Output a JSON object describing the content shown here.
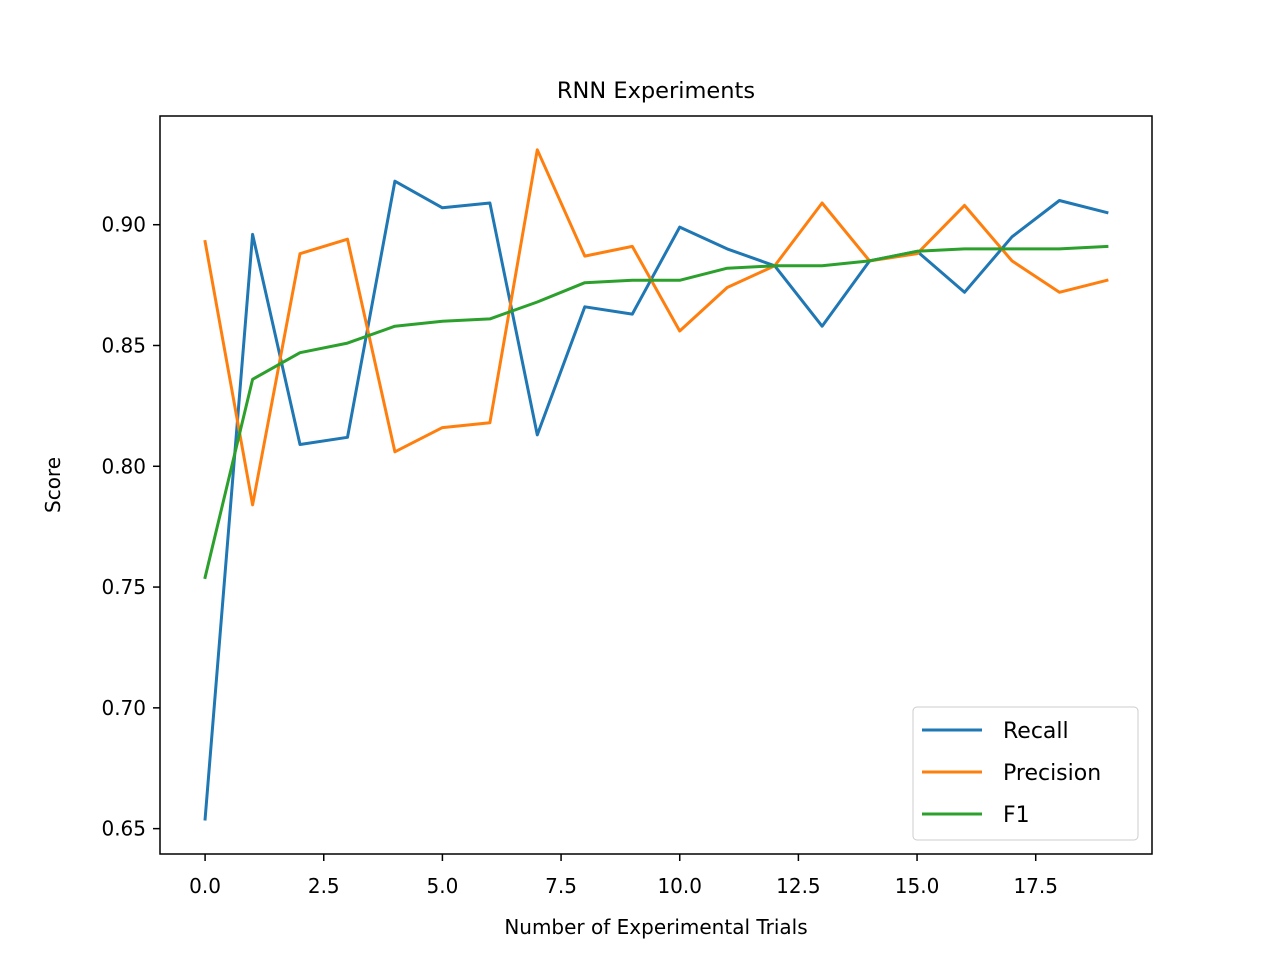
{
  "chart_data": {
    "type": "line",
    "title": "RNN Experiments",
    "xlabel": "Number of Experimental Trials",
    "ylabel": "Score",
    "xlim": [
      -0.95,
      19.95
    ],
    "ylim": [
      0.6395,
      0.945
    ],
    "xticks": [
      0,
      2.5,
      5,
      7.5,
      10,
      12.5,
      15,
      17.5
    ],
    "xtick_labels": [
      "0.0",
      "2.5",
      "5.0",
      "7.5",
      "10.0",
      "12.5",
      "15.0",
      "17.5"
    ],
    "yticks": [
      0.65,
      0.7,
      0.75,
      0.8,
      0.85,
      0.9
    ],
    "ytick_labels": [
      "0.65",
      "0.70",
      "0.75",
      "0.80",
      "0.85",
      "0.90"
    ],
    "grid": false,
    "legend_position": "lower-right",
    "x": [
      0,
      1,
      2,
      3,
      4,
      5,
      6,
      7,
      8,
      9,
      10,
      11,
      12,
      13,
      14,
      15,
      16,
      17,
      18,
      19
    ],
    "series": [
      {
        "name": "Recall",
        "color": "#1f77b4",
        "values": [
          0.654,
          0.896,
          0.809,
          0.812,
          0.918,
          0.907,
          0.909,
          0.813,
          0.866,
          0.863,
          0.899,
          0.89,
          0.883,
          0.858,
          0.885,
          0.889,
          0.872,
          0.895,
          0.91,
          0.905
        ]
      },
      {
        "name": "Precision",
        "color": "#ff7f0e",
        "values": [
          0.893,
          0.784,
          0.888,
          0.894,
          0.806,
          0.816,
          0.818,
          0.931,
          0.887,
          0.891,
          0.856,
          0.874,
          0.883,
          0.909,
          0.885,
          0.888,
          0.908,
          0.885,
          0.872,
          0.877
        ]
      },
      {
        "name": "F1",
        "color": "#2ca02c",
        "values": [
          0.754,
          0.836,
          0.847,
          0.851,
          0.858,
          0.86,
          0.861,
          0.868,
          0.876,
          0.877,
          0.877,
          0.882,
          0.883,
          0.883,
          0.885,
          0.889,
          0.89,
          0.89,
          0.89,
          0.891
        ]
      }
    ]
  }
}
